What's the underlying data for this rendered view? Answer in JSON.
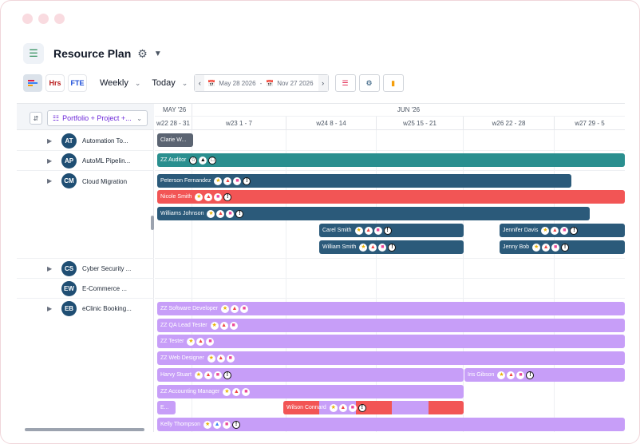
{
  "window": {
    "dots": [
      "red",
      "yellow",
      "green"
    ]
  },
  "header": {
    "title": "Resource Plan",
    "app_icon": "chart-icon"
  },
  "toolbar": {
    "view_buttons": [
      {
        "name": "gantt-view",
        "icon": "bars-icon",
        "active": true
      },
      {
        "name": "hours-view",
        "icon": "Hrs"
      },
      {
        "name": "fte-view",
        "icon": "FTE"
      }
    ],
    "scale": "Weekly",
    "today": "Today",
    "date_from": "May 28 2026",
    "date_sep": "-",
    "date_to": "Nov 27 2026",
    "prev": "‹",
    "next": "›"
  },
  "left": {
    "filter_label": "Portfolio + Project +...",
    "projects": [
      {
        "code": "AT",
        "name": "Automation To...",
        "expand": "▶"
      },
      {
        "code": "AP",
        "name": "AutoML Pipelin...",
        "expand": "▶"
      },
      {
        "code": "CM",
        "name": "Cloud Migration",
        "expand": "▶"
      },
      {
        "code": "CS",
        "name": "Cyber Security ...",
        "expand": "▶"
      },
      {
        "code": "EW",
        "name": "E-Commerce ...",
        "expand": ""
      },
      {
        "code": "EB",
        "name": "eClinic Booking...",
        "expand": "▶"
      }
    ]
  },
  "timeline": {
    "months": [
      "MAY '26",
      "JUN '26"
    ],
    "weeks": [
      "w22 28 - 31",
      "w23 1 - 7",
      "w24 8 - 14",
      "w25 15 - 21",
      "w26 22 - 28",
      "w27 29 - 5"
    ]
  },
  "bars": [
    {
      "label": "Clarie W..."
    },
    {
      "label": "ZZ Auditor"
    },
    {
      "label": "Peterson Fernandez"
    },
    {
      "label": "Nicole Smith"
    },
    {
      "label": "Williams Johnson"
    },
    {
      "label": "Carel Smith"
    },
    {
      "label": "Jennifer Davis"
    },
    {
      "label": "William Smith"
    },
    {
      "label": "Jenny Bob"
    },
    {
      "label": "ZZ Software Developer"
    },
    {
      "label": "ZZ QA Lead Tester"
    },
    {
      "label": "ZZ Tester"
    },
    {
      "label": "ZZ Web Designer"
    },
    {
      "label": "Harvy Stuart"
    },
    {
      "label": "Iris Gibson"
    },
    {
      "label": "ZZ Accounting Manager"
    },
    {
      "label": "E..."
    },
    {
      "label": "Wilson Connard"
    },
    {
      "label": "Kelly Thompson"
    }
  ],
  "colors": {
    "dark": "#2b5a7a",
    "teal": "#2a8f8f",
    "red": "#f25555",
    "lavender": "#c79ef8",
    "badge": "#1f4e73"
  }
}
